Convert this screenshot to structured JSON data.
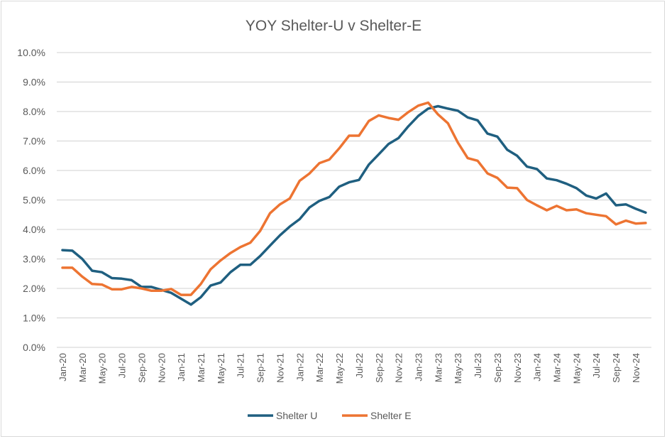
{
  "chart_data": {
    "type": "line",
    "title": "YOY Shelter-U v Shelter-E",
    "xlabel": "",
    "ylabel": "",
    "ylim": [
      0,
      10
    ],
    "yticks": [
      "0.0%",
      "1.0%",
      "2.0%",
      "3.0%",
      "4.0%",
      "5.0%",
      "6.0%",
      "7.0%",
      "8.0%",
      "9.0%",
      "10.0%"
    ],
    "grid": true,
    "legend_position": "bottom",
    "x": [
      "Jan-20",
      "Feb-20",
      "Mar-20",
      "Apr-20",
      "May-20",
      "Jun-20",
      "Jul-20",
      "Aug-20",
      "Sep-20",
      "Oct-20",
      "Nov-20",
      "Dec-20",
      "Jan-21",
      "Feb-21",
      "Mar-21",
      "Apr-21",
      "May-21",
      "Jun-21",
      "Jul-21",
      "Aug-21",
      "Sep-21",
      "Oct-21",
      "Nov-21",
      "Dec-21",
      "Jan-22",
      "Feb-22",
      "Mar-22",
      "Apr-22",
      "May-22",
      "Jun-22",
      "Jul-22",
      "Aug-22",
      "Sep-22",
      "Oct-22",
      "Nov-22",
      "Dec-22",
      "Jan-23",
      "Feb-23",
      "Mar-23",
      "Apr-23",
      "May-23",
      "Jun-23",
      "Jul-23",
      "Aug-23",
      "Sep-23",
      "Oct-23",
      "Nov-23",
      "Dec-23",
      "Jan-24",
      "Feb-24",
      "Mar-24",
      "Apr-24",
      "May-24",
      "Jun-24",
      "Jul-24",
      "Aug-24",
      "Sep-24",
      "Oct-24",
      "Nov-24",
      "Dec-24"
    ],
    "xtick_labels": [
      "Jan-20",
      "Mar-20",
      "May-20",
      "Jul-20",
      "Sep-20",
      "Nov-20",
      "Jan-21",
      "Mar-21",
      "May-21",
      "Jul-21",
      "Sep-21",
      "Nov-21",
      "Jan-22",
      "Mar-22",
      "May-22",
      "Jul-22",
      "Sep-22",
      "Nov-22",
      "Jan-23",
      "Mar-23",
      "May-23",
      "Jul-23",
      "Sep-23",
      "Nov-23",
      "Jan-24",
      "Mar-24",
      "May-24",
      "Jul-24",
      "Sep-24",
      "Nov-24"
    ],
    "series": [
      {
        "name": "Shelter U",
        "color": "#1f5f80",
        "values": [
          3.3,
          3.28,
          3.0,
          2.6,
          2.55,
          2.35,
          2.33,
          2.28,
          2.05,
          2.05,
          1.95,
          1.85,
          1.65,
          1.45,
          1.7,
          2.1,
          2.2,
          2.55,
          2.8,
          2.8,
          3.1,
          3.45,
          3.8,
          4.1,
          4.35,
          4.75,
          4.97,
          5.1,
          5.45,
          5.6,
          5.68,
          6.2,
          6.55,
          6.9,
          7.1,
          7.5,
          7.85,
          8.1,
          8.18,
          8.1,
          8.03,
          7.8,
          7.7,
          7.25,
          7.15,
          6.7,
          6.5,
          6.13,
          6.05,
          5.73,
          5.67,
          5.55,
          5.4,
          5.15,
          5.05,
          5.22,
          4.82,
          4.85,
          4.7,
          4.57
        ]
      },
      {
        "name": "Shelter E",
        "color": "#ed7432",
        "values": [
          2.7,
          2.7,
          2.4,
          2.15,
          2.13,
          1.97,
          1.97,
          2.05,
          2.0,
          1.92,
          1.92,
          1.98,
          1.78,
          1.78,
          2.15,
          2.65,
          2.95,
          3.2,
          3.4,
          3.55,
          3.95,
          4.55,
          4.85,
          5.05,
          5.65,
          5.9,
          6.25,
          6.37,
          6.75,
          7.18,
          7.18,
          7.68,
          7.87,
          7.78,
          7.72,
          7.98,
          8.2,
          8.3,
          7.9,
          7.6,
          6.95,
          6.42,
          6.33,
          5.9,
          5.75,
          5.42,
          5.4,
          5.0,
          4.82,
          4.65,
          4.8,
          4.65,
          4.68,
          4.55,
          4.5,
          4.45,
          4.17,
          4.3,
          4.2,
          4.22
        ]
      }
    ]
  }
}
